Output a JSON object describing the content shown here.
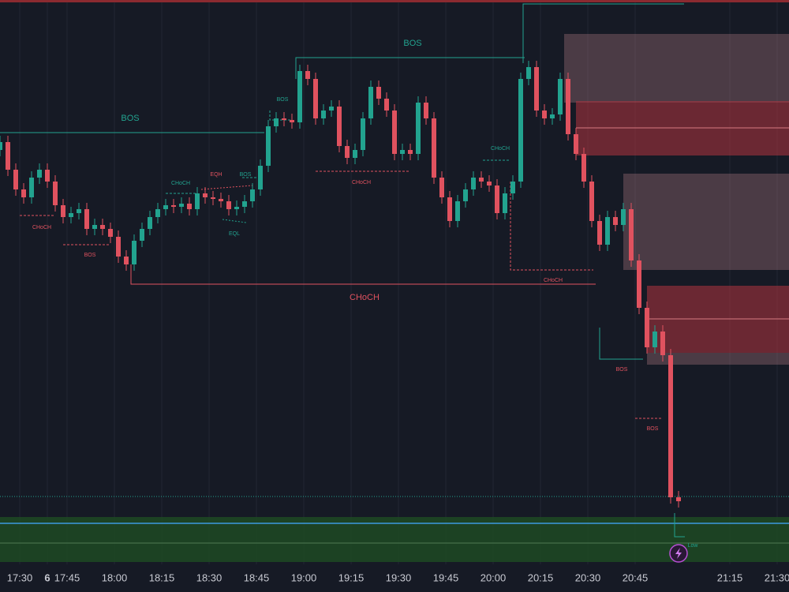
{
  "chart_data": {
    "type": "candlestick",
    "x": [
      0,
      1,
      2,
      3,
      4,
      5,
      6,
      7,
      8,
      9,
      10,
      11,
      12,
      13,
      14,
      15,
      16,
      17,
      18,
      19,
      20,
      21,
      22,
      23,
      24,
      25,
      26,
      27,
      28,
      29,
      30,
      31,
      32,
      33,
      34,
      35,
      36,
      37,
      38,
      39,
      40,
      41,
      42,
      43,
      44,
      45,
      46,
      47,
      48,
      49,
      50,
      51,
      52,
      53,
      54,
      55,
      56,
      57,
      58,
      59,
      60,
      61,
      62,
      63,
      64,
      65,
      66,
      67,
      68,
      69,
      70,
      71,
      72,
      73,
      74,
      75,
      76,
      77,
      78,
      79,
      80,
      81,
      82,
      83,
      84,
      85,
      86
    ],
    "open": [
      560,
      570,
      535,
      510,
      500,
      525,
      535,
      520,
      490,
      475,
      480,
      485,
      460,
      465,
      460,
      450,
      425,
      415,
      445,
      460,
      475,
      485,
      490,
      488,
      492,
      485,
      505,
      500,
      498,
      495,
      485,
      488,
      495,
      510,
      540,
      590,
      600,
      598,
      595,
      660,
      650,
      600,
      610,
      615,
      565,
      550,
      560,
      600,
      640,
      625,
      610,
      555,
      560,
      555,
      620,
      600,
      525,
      500,
      470,
      495,
      510,
      525,
      520,
      515,
      480,
      505,
      520,
      650,
      665,
      610,
      600,
      605,
      650,
      580,
      555,
      520,
      470,
      440,
      475,
      465,
      485,
      420,
      360,
      310,
      330,
      300,
      120
    ],
    "high": [
      578,
      578,
      543,
      518,
      533,
      543,
      543,
      528,
      498,
      488,
      493,
      493,
      473,
      473,
      468,
      458,
      433,
      453,
      468,
      483,
      493,
      498,
      498,
      500,
      500,
      513,
      513,
      508,
      506,
      503,
      496,
      503,
      518,
      548,
      598,
      608,
      608,
      606,
      668,
      668,
      658,
      618,
      623,
      623,
      573,
      568,
      608,
      648,
      648,
      633,
      618,
      568,
      568,
      628,
      628,
      608,
      533,
      508,
      503,
      518,
      533,
      533,
      528,
      523,
      513,
      528,
      658,
      673,
      673,
      618,
      613,
      658,
      658,
      588,
      563,
      528,
      478,
      483,
      483,
      493,
      493,
      428,
      368,
      338,
      338,
      308,
      128
    ],
    "low": [
      552,
      527,
      502,
      492,
      492,
      517,
      512,
      482,
      467,
      467,
      472,
      452,
      452,
      452,
      442,
      417,
      407,
      407,
      437,
      452,
      467,
      477,
      480,
      480,
      477,
      477,
      492,
      490,
      487,
      477,
      477,
      480,
      487,
      502,
      532,
      582,
      590,
      587,
      587,
      642,
      592,
      592,
      602,
      557,
      542,
      542,
      552,
      592,
      617,
      602,
      547,
      547,
      547,
      547,
      592,
      517,
      492,
      462,
      462,
      487,
      502,
      512,
      507,
      472,
      472,
      497,
      512,
      642,
      602,
      592,
      592,
      597,
      572,
      547,
      512,
      462,
      432,
      432,
      457,
      457,
      412,
      352,
      302,
      302,
      292,
      112,
      107
    ],
    "close": [
      570,
      535,
      510,
      500,
      525,
      535,
      520,
      490,
      475,
      480,
      485,
      460,
      465,
      460,
      450,
      425,
      415,
      445,
      460,
      475,
      485,
      490,
      488,
      492,
      485,
      505,
      500,
      498,
      495,
      485,
      488,
      495,
      510,
      540,
      590,
      600,
      598,
      595,
      660,
      650,
      600,
      610,
      615,
      565,
      550,
      560,
      600,
      640,
      625,
      610,
      555,
      560,
      555,
      620,
      600,
      525,
      500,
      470,
      495,
      510,
      525,
      520,
      515,
      480,
      505,
      520,
      650,
      665,
      610,
      600,
      605,
      650,
      580,
      555,
      520,
      470,
      440,
      475,
      465,
      485,
      420,
      360,
      310,
      330,
      300,
      120,
      115
    ],
    "up_color": "#22a38f",
    "down_color": "#e0525f",
    "xlim": [
      0,
      100
    ],
    "ylim": [
      35,
      750
    ],
    "xticks": [
      {
        "value": 2.5,
        "label": "17:30"
      },
      {
        "value": 8.5,
        "label": "17:45"
      },
      {
        "value": 14.5,
        "label": "18:00"
      },
      {
        "value": 20.5,
        "label": "18:15"
      },
      {
        "value": 26.5,
        "label": "18:30"
      },
      {
        "value": 32.5,
        "label": "18:45"
      },
      {
        "value": 38.5,
        "label": "19:00"
      },
      {
        "value": 44.5,
        "label": "19:15"
      },
      {
        "value": 50.5,
        "label": "19:30"
      },
      {
        "value": 56.5,
        "label": "19:45"
      },
      {
        "value": 62.5,
        "label": "20:00"
      },
      {
        "value": 68.5,
        "label": "20:15"
      },
      {
        "value": 74.5,
        "label": "20:30"
      },
      {
        "value": 80.5,
        "label": "20:45"
      },
      6,
      {
        "value": 92.5,
        "label": "21:15"
      },
      {
        "value": 98.5,
        "label": "21:30"
      }
    ],
    "annotations": [
      "BOS",
      "BOS",
      "BOS",
      "BOS",
      "CHoCH",
      "EQH",
      "EQL",
      "CHoCH",
      "BOS",
      "CHoCH",
      "CHoCH",
      "CHoCH",
      "CHoCH",
      "BOS",
      "BOS",
      "Low"
    ]
  }
}
